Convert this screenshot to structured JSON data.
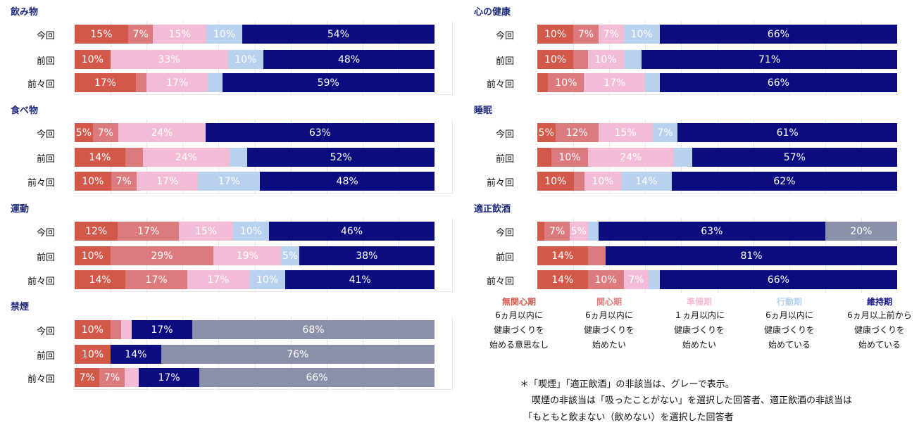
{
  "colors": {
    "mukanshin": "#d2584a",
    "kanshin": "#db7b7e",
    "junbi": "#f3bcd6",
    "kodo": "#b7d1ef",
    "iji": "#0b0c80",
    "hi_gaito": "#8a90aa"
  },
  "chart_data": [
    {
      "type": "bar",
      "title": "飲み物",
      "categories": [
        "今回",
        "前回",
        "前々回"
      ],
      "series": [
        {
          "name": "無関心期",
          "values": [
            15,
            10,
            17
          ]
        },
        {
          "name": "関心期",
          "values": [
            7,
            0,
            3
          ]
        },
        {
          "name": "準備期",
          "values": [
            15,
            33,
            17
          ]
        },
        {
          "name": "行動期",
          "values": [
            10,
            10,
            4
          ]
        },
        {
          "name": "維持期",
          "values": [
            54,
            48,
            59
          ]
        }
      ],
      "hidden_labels": [
        [],
        [],
        [
          [
            0,
            3
          ],
          [
            0,
            1
          ]
        ]
      ]
    },
    {
      "type": "bar",
      "title": "心の健康",
      "categories": [
        "今回",
        "前回",
        "前々回"
      ],
      "series": [
        {
          "name": "無関心期",
          "values": [
            10,
            10,
            3
          ]
        },
        {
          "name": "関心期",
          "values": [
            7,
            4,
            10
          ]
        },
        {
          "name": "準備期",
          "values": [
            7,
            10,
            17
          ]
        },
        {
          "name": "行動期",
          "values": [
            10,
            5,
            4
          ]
        },
        {
          "name": "維持期",
          "values": [
            66,
            71,
            66
          ]
        }
      ],
      "hidden_labels": [
        [],
        [
          [
            1,
            1
          ],
          [
            1,
            3
          ]
        ],
        [
          [
            2,
            0
          ],
          [
            2,
            3
          ]
        ]
      ]
    },
    {
      "type": "bar",
      "title": "食べ物",
      "categories": [
        "今回",
        "前回",
        "前々回"
      ],
      "series": [
        {
          "name": "無関心期",
          "values": [
            5,
            14,
            10
          ]
        },
        {
          "name": "関心期",
          "values": [
            7,
            5,
            7
          ]
        },
        {
          "name": "準備期",
          "values": [
            24,
            24,
            17
          ]
        },
        {
          "name": "行動期",
          "values": [
            0,
            5,
            17
          ]
        },
        {
          "name": "維持期",
          "values": [
            63,
            52,
            48
          ]
        }
      ],
      "hidden_labels": [
        [],
        [
          [
            1,
            1
          ],
          [
            1,
            3
          ]
        ],
        []
      ]
    },
    {
      "type": "bar",
      "title": "睡眠",
      "categories": [
        "今回",
        "前回",
        "前々回"
      ],
      "series": [
        {
          "name": "無関心期",
          "values": [
            5,
            4,
            10
          ]
        },
        {
          "name": "関心期",
          "values": [
            12,
            10,
            3
          ]
        },
        {
          "name": "準備期",
          "values": [
            15,
            24,
            10
          ]
        },
        {
          "name": "行動期",
          "values": [
            7,
            5,
            14
          ]
        },
        {
          "name": "維持期",
          "values": [
            61,
            57,
            62
          ]
        }
      ],
      "hidden_labels": [
        [],
        [
          [
            1,
            0
          ],
          [
            1,
            3
          ]
        ],
        [
          [
            2,
            1
          ]
        ]
      ]
    },
    {
      "type": "bar",
      "title": "運動",
      "categories": [
        "今回",
        "前回",
        "前々回"
      ],
      "series": [
        {
          "name": "無関心期",
          "values": [
            12,
            10,
            14
          ]
        },
        {
          "name": "関心期",
          "values": [
            17,
            29,
            17
          ]
        },
        {
          "name": "準備期",
          "values": [
            15,
            19,
            17
          ]
        },
        {
          "name": "行動期",
          "values": [
            10,
            5,
            10
          ]
        },
        {
          "name": "維持期",
          "values": [
            46,
            38,
            41
          ]
        }
      ],
      "hidden_labels": [
        [],
        [],
        []
      ]
    },
    {
      "type": "bar",
      "title": "適正飲酒",
      "categories": [
        "今回",
        "前回",
        "前々回"
      ],
      "series": [
        {
          "name": "無関心期",
          "values": [
            2,
            14,
            14
          ]
        },
        {
          "name": "関心期",
          "values": [
            7,
            5,
            10
          ]
        },
        {
          "name": "準備期",
          "values": [
            5,
            0,
            7
          ]
        },
        {
          "name": "行動期",
          "values": [
            3,
            0,
            3
          ]
        },
        {
          "name": "維持期",
          "values": [
            63,
            81,
            66
          ]
        },
        {
          "name": "非該当",
          "values": [
            20,
            0,
            0
          ]
        }
      ],
      "hidden_labels": [
        [
          [
            0,
            0
          ],
          [
            0,
            3
          ]
        ],
        [
          [
            1,
            1
          ]
        ],
        [
          [
            2,
            3
          ]
        ]
      ]
    },
    {
      "type": "bar",
      "title": "禁煙",
      "categories": [
        "今回",
        "前回",
        "前々回"
      ],
      "series": [
        {
          "name": "無関心期",
          "values": [
            10,
            10,
            7
          ]
        },
        {
          "name": "関心期",
          "values": [
            3,
            0,
            7
          ]
        },
        {
          "name": "準備期",
          "values": [
            3,
            0,
            4
          ]
        },
        {
          "name": "行動期",
          "values": [
            0,
            0,
            0
          ]
        },
        {
          "name": "維持期",
          "values": [
            17,
            14,
            17
          ]
        },
        {
          "name": "非該当",
          "values": [
            68,
            76,
            66
          ]
        }
      ],
      "hidden_labels": [
        [
          [
            0,
            1
          ],
          [
            0,
            2
          ]
        ],
        [],
        [
          [
            2,
            2
          ]
        ]
      ]
    }
  ],
  "legend": [
    {
      "title": "無関心期",
      "lines": [
        "6ヵ月以内に",
        "健康づくりを",
        "始める意思なし"
      ],
      "color_key": "mukanshin"
    },
    {
      "title": "関心期",
      "lines": [
        "6ヵ月以内に",
        "健康づくりを",
        "始めたい"
      ],
      "color_key": "kanshin"
    },
    {
      "title": "準備期",
      "lines": [
        "１ヵ月以内に",
        "健康づくりを",
        "始めたい"
      ],
      "color_key": "junbi"
    },
    {
      "title": "行動期",
      "lines": [
        "6ヵ月以内に",
        "健康づくりを",
        "始めている"
      ],
      "color_key": "kodo"
    },
    {
      "title": "維持期",
      "lines": [
        "6ヵ月以上前から",
        "健康づくりを",
        "始めている"
      ],
      "color_key": "iji"
    }
  ],
  "notes": [
    "＊「喫煙」「適正飲酒」の非該当は、グレーで表示。",
    "喫煙の非該当は「吸ったことがない」を選択した回答者、適正飲酒の非該当は",
    "「もともと飲まない（飲めない）を選択した回答者"
  ]
}
